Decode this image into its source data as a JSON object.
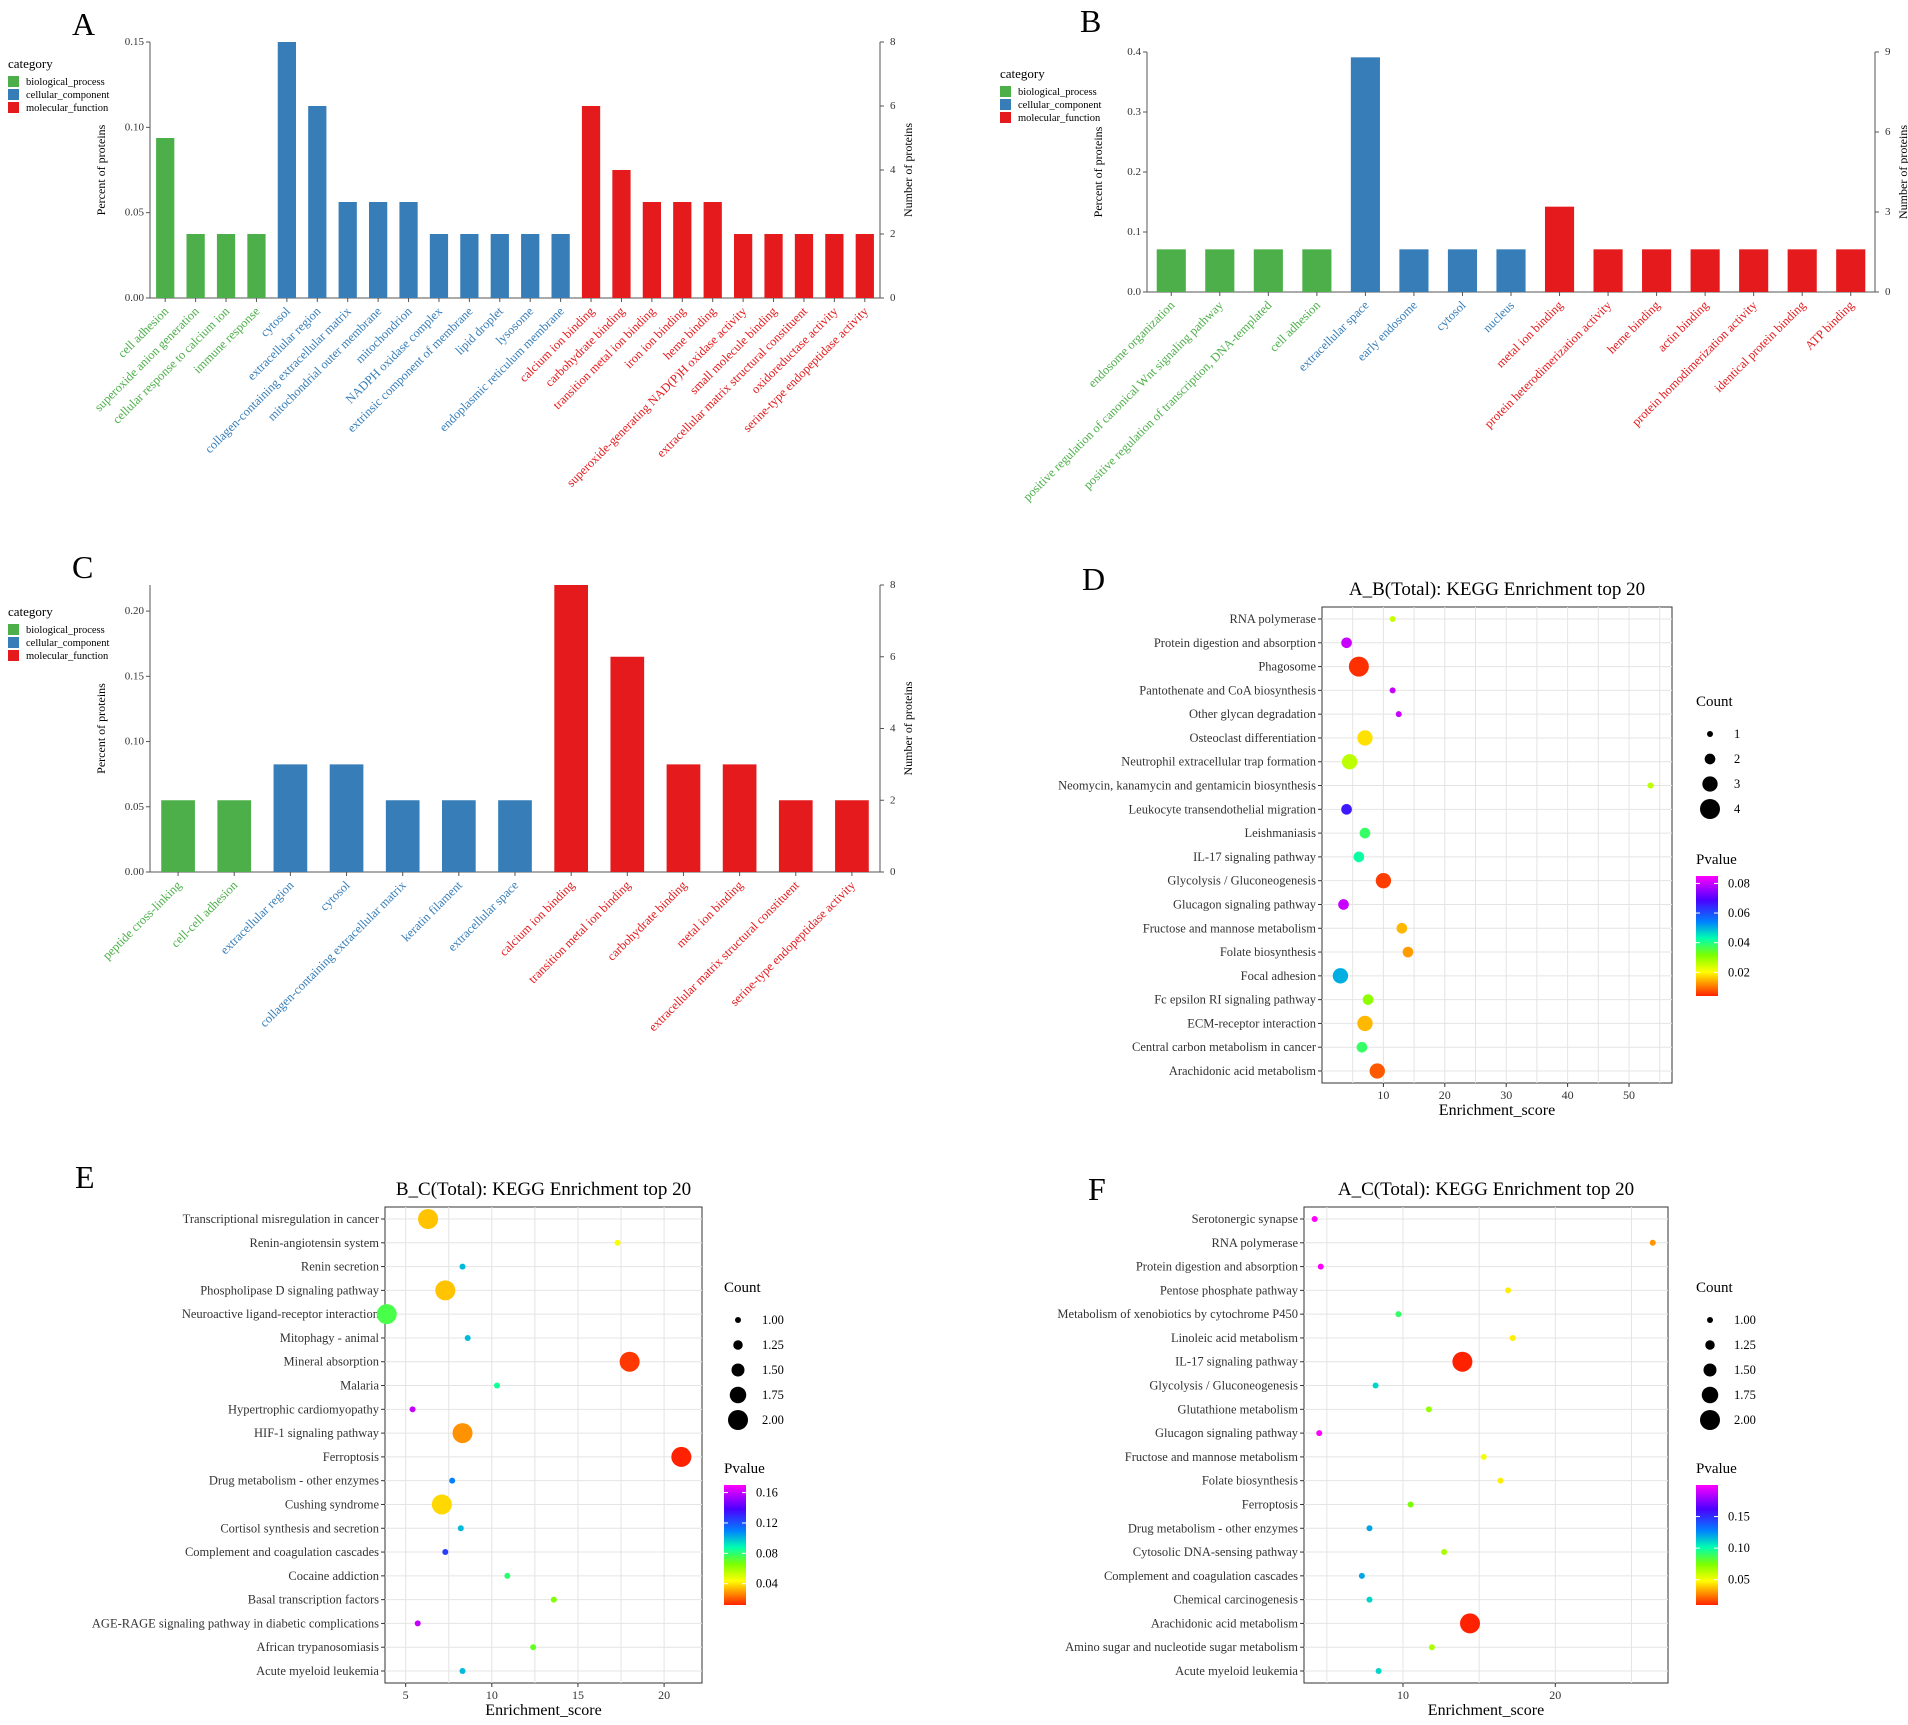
{
  "figure": {
    "panels": [
      {
        "letter": "A"
      },
      {
        "letter": "B"
      },
      {
        "letter": "C"
      },
      {
        "letter": "D"
      },
      {
        "letter": "E"
      },
      {
        "letter": "F"
      }
    ]
  },
  "colors": {
    "biological_process": "#4daf4a",
    "cellular_component": "#377eb8",
    "molecular_function": "#e41a1c"
  },
  "chart_data": [
    {
      "panel": "A",
      "type": "bar",
      "ylabel": "Percent of proteins",
      "y2label": "Number of proteins",
      "ylim": [
        0,
        0.15
      ],
      "yticks": [
        "0.00",
        "0.05",
        "0.10",
        "0.15"
      ],
      "y2lim": [
        0,
        8
      ],
      "y2ticks": [
        "0",
        "2",
        "4",
        "6",
        "8"
      ],
      "legend": {
        "title": "category",
        "items": [
          "biological_process",
          "cellular_component",
          "molecular_function"
        ]
      },
      "bars": [
        {
          "label": "cell adhesion",
          "category": "biological_process",
          "count": 5
        },
        {
          "label": "superoxide anion generation",
          "category": "biological_process",
          "count": 2
        },
        {
          "label": "cellular response to calcium ion",
          "category": "biological_process",
          "count": 2
        },
        {
          "label": "immune response",
          "category": "biological_process",
          "count": 2
        },
        {
          "label": "cytosol",
          "category": "cellular_component",
          "count": 8
        },
        {
          "label": "extracellular region",
          "category": "cellular_component",
          "count": 6
        },
        {
          "label": "collagen-containing extracellular matrix",
          "category": "cellular_component",
          "count": 3
        },
        {
          "label": "mitochondrial outer membrane",
          "category": "cellular_component",
          "count": 3
        },
        {
          "label": "mitochondrion",
          "category": "cellular_component",
          "count": 3
        },
        {
          "label": "NADPH oxidase complex",
          "category": "cellular_component",
          "count": 2
        },
        {
          "label": "extrinsic component of membrane",
          "category": "cellular_component",
          "count": 2
        },
        {
          "label": "lipid droplet",
          "category": "cellular_component",
          "count": 2
        },
        {
          "label": "lysosome",
          "category": "cellular_component",
          "count": 2
        },
        {
          "label": "endoplasmic reticulum membrane",
          "category": "cellular_component",
          "count": 2
        },
        {
          "label": "calcium ion binding",
          "category": "molecular_function",
          "count": 6
        },
        {
          "label": "carbohydrate binding",
          "category": "molecular_function",
          "count": 4
        },
        {
          "label": "transition metal ion binding",
          "category": "molecular_function",
          "count": 3
        },
        {
          "label": "iron ion binding",
          "category": "molecular_function",
          "count": 3
        },
        {
          "label": "heme binding",
          "category": "molecular_function",
          "count": 3
        },
        {
          "label": "superoxide-generating NAD(P)H oxidase activity",
          "category": "molecular_function",
          "count": 2
        },
        {
          "label": "small molecule binding",
          "category": "molecular_function",
          "count": 2
        },
        {
          "label": "extracellular matrix structural constituent",
          "category": "molecular_function",
          "count": 2
        },
        {
          "label": "oxidoreductase activity",
          "category": "molecular_function",
          "count": 2
        },
        {
          "label": "serine-type endopeptidase activity",
          "category": "molecular_function",
          "count": 2
        }
      ]
    },
    {
      "panel": "B",
      "type": "bar",
      "ylabel": "Percent of proteins",
      "y2label": "Number of proteins",
      "ylim": [
        0,
        0.4
      ],
      "yticks": [
        "0.0",
        "0.1",
        "0.2",
        "0.3",
        "0.4"
      ],
      "y2lim": [
        0,
        9
      ],
      "y2ticks": [
        "0",
        "3",
        "6",
        "9"
      ],
      "legend": {
        "title": "category",
        "items": [
          "biological_process",
          "cellular_component",
          "molecular_function"
        ]
      },
      "bars": [
        {
          "label": "endosome organization",
          "category": "biological_process",
          "count": 1.6
        },
        {
          "label": "positive regulation of canonical Wnt signaling pathway",
          "category": "biological_process",
          "count": 1.6
        },
        {
          "label": "positive regulation of transcription, DNA-templated",
          "category": "biological_process",
          "count": 1.6
        },
        {
          "label": "cell adhesion",
          "category": "biological_process",
          "count": 1.6
        },
        {
          "label": "extracellular space",
          "category": "cellular_component",
          "count": 8.8
        },
        {
          "label": "early endosome",
          "category": "cellular_component",
          "count": 1.6
        },
        {
          "label": "cytosol",
          "category": "cellular_component",
          "count": 1.6
        },
        {
          "label": "nucleus",
          "category": "cellular_component",
          "count": 1.6
        },
        {
          "label": "metal ion binding",
          "category": "molecular_function",
          "count": 3.2
        },
        {
          "label": "protein heterodimerization activity",
          "category": "molecular_function",
          "count": 1.6
        },
        {
          "label": "heme binding",
          "category": "molecular_function",
          "count": 1.6
        },
        {
          "label": "actin binding",
          "category": "molecular_function",
          "count": 1.6
        },
        {
          "label": "protein homodimerization activity",
          "category": "molecular_function",
          "count": 1.6
        },
        {
          "label": "identical protein binding",
          "category": "molecular_function",
          "count": 1.6
        },
        {
          "label": "ATP binding",
          "category": "molecular_function",
          "count": 1.6
        }
      ]
    },
    {
      "panel": "C",
      "type": "bar",
      "ylabel": "Percent of proteins",
      "y2label": "Number of proteins",
      "ylim": [
        0,
        0.22
      ],
      "yticks": [
        "0.00",
        "0.05",
        "0.10",
        "0.15",
        "0.20"
      ],
      "y2lim": [
        0,
        8
      ],
      "y2ticks": [
        "0",
        "2",
        "4",
        "6",
        "8"
      ],
      "legend": {
        "title": "category",
        "items": [
          "biological_process",
          "cellular_component",
          "molecular_function"
        ]
      },
      "bars": [
        {
          "label": "peptide cross-linking",
          "category": "biological_process",
          "count": 2
        },
        {
          "label": "cell-cell adhesion",
          "category": "biological_process",
          "count": 2
        },
        {
          "label": "extracellular region",
          "category": "cellular_component",
          "count": 3
        },
        {
          "label": "cytosol",
          "category": "cellular_component",
          "count": 3
        },
        {
          "label": "collagen-containing extracellular matrix",
          "category": "cellular_component",
          "count": 2
        },
        {
          "label": "keratin filament",
          "category": "cellular_component",
          "count": 2
        },
        {
          "label": "extracellular space",
          "category": "cellular_component",
          "count": 2
        },
        {
          "label": "calcium ion binding",
          "category": "molecular_function",
          "count": 8
        },
        {
          "label": "transition metal ion binding",
          "category": "molecular_function",
          "count": 6
        },
        {
          "label": "carbohydrate binding",
          "category": "molecular_function",
          "count": 3
        },
        {
          "label": "metal ion binding",
          "category": "molecular_function",
          "count": 3
        },
        {
          "label": "extracellular matrix structural constituent",
          "category": "molecular_function",
          "count": 2
        },
        {
          "label": "serine-type endopeptidase activity",
          "category": "molecular_function",
          "count": 2
        }
      ]
    },
    {
      "panel": "D",
      "type": "scatter",
      "title": "A_B(Total): KEGG Enrichment top 20",
      "xlabel": "Enrichment_score",
      "xlim": [
        0,
        57
      ],
      "xticks": [
        10,
        20,
        30,
        40,
        50
      ],
      "size_legend": {
        "title": "Count",
        "values": [
          "1",
          "2",
          "3",
          "4"
        ],
        "numeric": [
          1,
          2,
          3,
          4
        ]
      },
      "color_legend": {
        "title": "Pvalue",
        "ticks": [
          "0.08",
          "0.06",
          "0.04",
          "0.02"
        ],
        "tick_values": [
          0.08,
          0.06,
          0.04,
          0.02
        ],
        "range": [
          0.004,
          0.085
        ]
      },
      "points": [
        {
          "term": "RNA polymerase",
          "x": 11.5,
          "count": 1,
          "p": 0.025
        },
        {
          "term": "Protein digestion and absorption",
          "x": 4.0,
          "count": 2,
          "p": 0.08
        },
        {
          "term": "Phagosome",
          "x": 6.0,
          "count": 4,
          "p": 0.005
        },
        {
          "term": "Pantothenate and CoA biosynthesis",
          "x": 11.5,
          "count": 1,
          "p": 0.08
        },
        {
          "term": "Other glycan degradation",
          "x": 12.5,
          "count": 1,
          "p": 0.08
        },
        {
          "term": "Osteoclast differentiation",
          "x": 7.0,
          "count": 3,
          "p": 0.018
        },
        {
          "term": "Neutrophil extracellular trap formation",
          "x": 4.5,
          "count": 3,
          "p": 0.026
        },
        {
          "term": "Neomycin, kanamycin and gentamicin biosynthesis",
          "x": 53.5,
          "count": 1,
          "p": 0.026
        },
        {
          "term": "Leukocyte transendothelial migration",
          "x": 4.0,
          "count": 2,
          "p": 0.066
        },
        {
          "term": "Leishmaniasis",
          "x": 7.0,
          "count": 2,
          "p": 0.038
        },
        {
          "term": "IL-17 signaling pathway",
          "x": 6.0,
          "count": 2,
          "p": 0.042
        },
        {
          "term": "Glycolysis / Gluconeogenesis",
          "x": 10.0,
          "count": 3,
          "p": 0.006
        },
        {
          "term": "Glucagon signaling pathway",
          "x": 3.5,
          "count": 2,
          "p": 0.08
        },
        {
          "term": "Fructose and mannose metabolism",
          "x": 13.0,
          "count": 2,
          "p": 0.015
        },
        {
          "term": "Folate biosynthesis",
          "x": 14.0,
          "count": 2,
          "p": 0.013
        },
        {
          "term": "Focal adhesion",
          "x": 3.0,
          "count": 3,
          "p": 0.05
        },
        {
          "term": "Fc epsilon RI signaling pathway",
          "x": 7.5,
          "count": 2,
          "p": 0.03
        },
        {
          "term": "ECM-receptor interaction",
          "x": 7.0,
          "count": 3,
          "p": 0.015
        },
        {
          "term": "Central carbon metabolism in cancer",
          "x": 6.5,
          "count": 2,
          "p": 0.038
        },
        {
          "term": "Arachidonic acid metabolism",
          "x": 9.0,
          "count": 3,
          "p": 0.008
        }
      ]
    },
    {
      "panel": "E",
      "type": "scatter",
      "title": "B_C(Total): KEGG Enrichment top 20",
      "xlabel": "Enrichment_score",
      "xlim": [
        3.8,
        22.2
      ],
      "xticks": [
        5,
        10,
        15,
        20
      ],
      "size_legend": {
        "title": "Count",
        "values": [
          "1.00",
          "1.25",
          "1.50",
          "1.75",
          "2.00"
        ],
        "numeric": [
          1,
          1.25,
          1.5,
          1.75,
          2
        ]
      },
      "color_legend": {
        "title": "Pvalue",
        "ticks": [
          "0.16",
          "0.12",
          "0.08",
          "0.04"
        ],
        "tick_values": [
          0.16,
          0.12,
          0.08,
          0.04
        ],
        "range": [
          0.012,
          0.17
        ]
      },
      "points": [
        {
          "term": "Transcriptional misregulation in cancer",
          "x": 6.3,
          "count": 2,
          "p": 0.035
        },
        {
          "term": "Renin-angiotensin system",
          "x": 17.3,
          "count": 1,
          "p": 0.045
        },
        {
          "term": "Renin secretion",
          "x": 8.3,
          "count": 1,
          "p": 0.1
        },
        {
          "term": "Phospholipase D signaling pathway",
          "x": 7.3,
          "count": 2,
          "p": 0.035
        },
        {
          "term": "Neuroactive ligand-receptor interaction",
          "x": 3.9,
          "count": 2,
          "p": 0.075
        },
        {
          "term": "Mitophagy - animal",
          "x": 8.6,
          "count": 1,
          "p": 0.1
        },
        {
          "term": "Mineral absorption",
          "x": 18.0,
          "count": 2,
          "p": 0.015
        },
        {
          "term": "Malaria",
          "x": 10.3,
          "count": 1,
          "p": 0.085
        },
        {
          "term": "Hypertrophic cardiomyopathy",
          "x": 5.4,
          "count": 1,
          "p": 0.16
        },
        {
          "term": "HIF-1 signaling pathway",
          "x": 8.3,
          "count": 2,
          "p": 0.028
        },
        {
          "term": "Ferroptosis",
          "x": 21.0,
          "count": 2,
          "p": 0.012
        },
        {
          "term": "Drug metabolism - other enzymes",
          "x": 7.7,
          "count": 1,
          "p": 0.11
        },
        {
          "term": "Cushing syndrome",
          "x": 7.1,
          "count": 2,
          "p": 0.038
        },
        {
          "term": "Cortisol synthesis and secretion",
          "x": 8.2,
          "count": 1,
          "p": 0.1
        },
        {
          "term": "Complement and coagulation cascades",
          "x": 7.3,
          "count": 1,
          "p": 0.125
        },
        {
          "term": "Cocaine addiction",
          "x": 10.9,
          "count": 1,
          "p": 0.08
        },
        {
          "term": "Basal transcription factors",
          "x": 13.6,
          "count": 1,
          "p": 0.065
        },
        {
          "term": "AGE-RAGE signaling pathway in diabetic complications",
          "x": 5.7,
          "count": 1,
          "p": 0.16
        },
        {
          "term": "African trypanosomiasis",
          "x": 12.4,
          "count": 1,
          "p": 0.07
        },
        {
          "term": "Acute myeloid leukemia",
          "x": 8.3,
          "count": 1,
          "p": 0.1
        }
      ]
    },
    {
      "panel": "F",
      "type": "scatter",
      "title": "A_C(Total): KEGG Enrichment top 20",
      "xlabel": "Enrichment_score",
      "xlim": [
        3.5,
        27.4
      ],
      "xticks": [
        10,
        20
      ],
      "size_legend": {
        "title": "Count",
        "values": [
          "1.00",
          "1.25",
          "1.50",
          "1.75",
          "2.00"
        ],
        "numeric": [
          1,
          1.25,
          1.5,
          1.75,
          2
        ]
      },
      "color_legend": {
        "title": "Pvalue",
        "ticks": [
          "0.15",
          "0.10",
          "0.05"
        ],
        "tick_values": [
          0.15,
          0.1,
          0.05
        ],
        "range": [
          0.01,
          0.2
        ]
      },
      "points": [
        {
          "term": "Serotonergic synapse",
          "x": 4.2,
          "count": 1,
          "p": 0.2
        },
        {
          "term": "RNA polymerase",
          "x": 26.4,
          "count": 1,
          "p": 0.03
        },
        {
          "term": "Protein digestion and absorption",
          "x": 4.6,
          "count": 1,
          "p": 0.2
        },
        {
          "term": "Pentose phosphate pathway",
          "x": 16.9,
          "count": 1,
          "p": 0.045
        },
        {
          "term": "Metabolism of xenobiotics by cytochrome P450",
          "x": 9.7,
          "count": 1,
          "p": 0.09
        },
        {
          "term": "Linoleic acid metabolism",
          "x": 17.2,
          "count": 1,
          "p": 0.045
        },
        {
          "term": "IL-17 signaling pathway",
          "x": 13.9,
          "count": 2,
          "p": 0.01
        },
        {
          "term": "Glycolysis / Gluconeogenesis",
          "x": 8.2,
          "count": 1,
          "p": 0.11
        },
        {
          "term": "Glutathione metabolism",
          "x": 11.7,
          "count": 1,
          "p": 0.07
        },
        {
          "term": "Glucagon signaling pathway",
          "x": 4.5,
          "count": 1,
          "p": 0.2
        },
        {
          "term": "Fructose and mannose metabolism",
          "x": 15.3,
          "count": 1,
          "p": 0.05
        },
        {
          "term": "Folate biosynthesis",
          "x": 16.4,
          "count": 1,
          "p": 0.045
        },
        {
          "term": "Ferroptosis",
          "x": 10.5,
          "count": 1,
          "p": 0.075
        },
        {
          "term": "Drug metabolism - other enzymes",
          "x": 7.8,
          "count": 1,
          "p": 0.12
        },
        {
          "term": "Cytosolic DNA-sensing pathway",
          "x": 12.7,
          "count": 1,
          "p": 0.065
        },
        {
          "term": "Complement and coagulation cascades",
          "x": 7.3,
          "count": 1,
          "p": 0.12
        },
        {
          "term": "Chemical carcinogenesis",
          "x": 7.8,
          "count": 1,
          "p": 0.11
        },
        {
          "term": "Arachidonic acid metabolism",
          "x": 14.4,
          "count": 2,
          "p": 0.01
        },
        {
          "term": "Amino sugar and nucleotide sugar metabolism",
          "x": 11.9,
          "count": 1,
          "p": 0.065
        },
        {
          "term": "Acute myeloid leukemia",
          "x": 8.4,
          "count": 1,
          "p": 0.11
        }
      ]
    }
  ]
}
